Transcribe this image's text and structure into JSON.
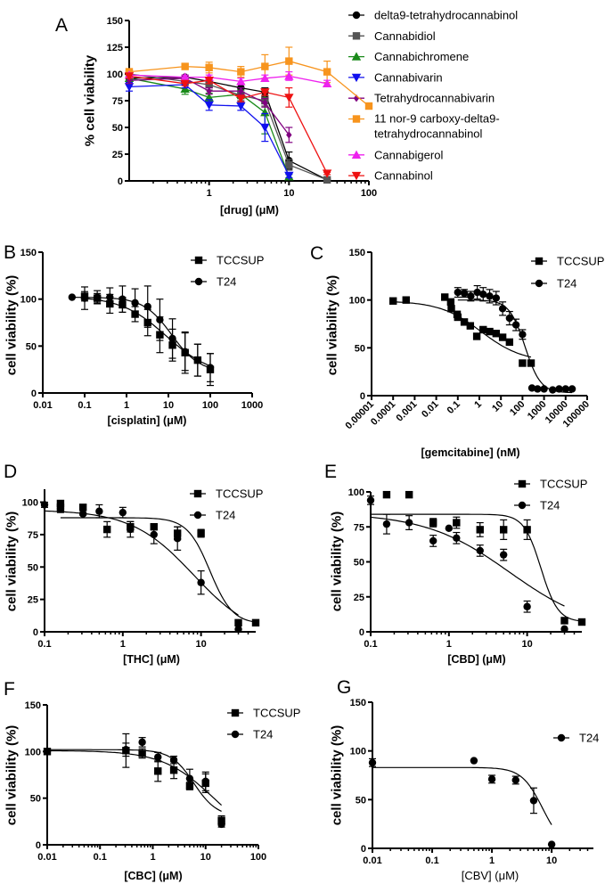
{
  "chart_data": [
    {
      "panel": "A",
      "type": "line",
      "xscale": "log",
      "xlim": [
        0.1,
        100
      ],
      "ylim": [
        0,
        150
      ],
      "xticks": [
        1,
        10,
        100
      ],
      "yticks": [
        0,
        25,
        50,
        75,
        100,
        125,
        150
      ],
      "xlabel": "[drug] (μM)",
      "ylabel": "% cell viability",
      "grid": false,
      "legend": "right",
      "series": [
        {
          "name": "delta9-tetrahydrocannabinol",
          "color": "#000000",
          "marker": "circle",
          "x": [
            0.1,
            0.5,
            1,
            2.5,
            5,
            10,
            30
          ],
          "y": [
            96,
            97,
            93,
            87,
            83,
            19,
            1
          ],
          "err": [
            3,
            2,
            4,
            4,
            4,
            8,
            1
          ]
        },
        {
          "name": "Cannabidiol",
          "color": "#555555",
          "marker": "square",
          "x": [
            0.1,
            0.5,
            1,
            2.5,
            5,
            10,
            30
          ],
          "y": [
            100,
            93,
            90,
            80,
            75,
            15,
            1
          ],
          "err": [
            3,
            3,
            5,
            5,
            5,
            5,
            1
          ]
        },
        {
          "name": "Cannabichromene",
          "color": "#1a8a1a",
          "marker": "triangle-up",
          "x": [
            0.1,
            0.5,
            1,
            2.5,
            5,
            10
          ],
          "y": [
            96,
            86,
            78,
            81,
            64,
            4
          ],
          "err": [
            3,
            5,
            4,
            4,
            20,
            2
          ]
        },
        {
          "name": "Cannabivarin",
          "color": "#1010ee",
          "marker": "triangle-down",
          "x": [
            0.1,
            0.5,
            1,
            2.5,
            5,
            10
          ],
          "y": [
            88,
            90,
            71,
            70,
            50,
            5
          ],
          "err": [
            4,
            3,
            5,
            4,
            13,
            2
          ]
        },
        {
          "name": "Tetrahydrocannabivarin",
          "color": "#800080",
          "marker": "diamond",
          "x": [
            0.1,
            0.5,
            1,
            2.5,
            5,
            10
          ],
          "y": [
            94,
            96,
            84,
            84,
            73,
            43
          ],
          "err": [
            3,
            2,
            3,
            3,
            4,
            7
          ]
        },
        {
          "name": "11 nor-9 carboxy-delta9-tetrahydrocannabinol",
          "legend_lines": [
            "11 nor-9 carboxy-delta9-",
            "tetrahydrocannabinol"
          ],
          "color": "#f7941d",
          "marker": "square",
          "x": [
            0.1,
            0.5,
            1,
            2.5,
            5,
            10,
            30,
            100
          ],
          "y": [
            102,
            107,
            106,
            102,
            107,
            112,
            102,
            70
          ],
          "err": [
            3,
            2,
            5,
            5,
            11,
            13,
            10,
            1
          ]
        },
        {
          "name": "Cannabigerol",
          "color": "#ee22ee",
          "marker": "triangle-up",
          "x": [
            0.1,
            0.5,
            1,
            2.5,
            5,
            10,
            30
          ],
          "y": [
            99,
            97,
            97,
            93,
            96,
            98,
            91
          ],
          "err": [
            2,
            2,
            2,
            3,
            3,
            4,
            3
          ]
        },
        {
          "name": "Cannabinol",
          "color": "#ee1111",
          "marker": "triangle-down",
          "x": [
            0.1,
            0.5,
            1,
            2.5,
            5,
            10,
            30
          ],
          "y": [
            98,
            91,
            94,
            77,
            83,
            78,
            7
          ],
          "err": [
            2,
            2,
            3,
            3,
            3,
            9,
            1
          ]
        }
      ]
    },
    {
      "panel": "B",
      "type": "scatter",
      "xscale": "log",
      "xlim": [
        0.01,
        1000
      ],
      "ylim": [
        0,
        150
      ],
      "xticks": [
        0.01,
        0.1,
        1,
        10,
        100,
        1000
      ],
      "xticklabels": [
        "0.01",
        "0.1",
        "1",
        "10",
        "100",
        "1000"
      ],
      "yticks": [
        0,
        50,
        100,
        150
      ],
      "xlabel": "[cisplatin] (μM)",
      "ylabel": "cell viability (%)",
      "grid": false,
      "legend": "top-right",
      "series": [
        {
          "name": "TCCSUP",
          "marker": "square",
          "x": [
            0.1,
            0.2,
            0.4,
            0.8,
            1.6,
            3.2,
            6.25,
            12.5,
            25,
            50,
            100
          ],
          "y": [
            103,
            101,
            95,
            94,
            84,
            75,
            62,
            51,
            43,
            35,
            25
          ],
          "err": [
            5,
            5,
            10,
            8,
            8,
            14,
            19,
            17,
            22,
            17,
            17
          ],
          "fit": {
            "top": 103,
            "bottom": 18,
            "ec50": 9,
            "hill": 0.8
          }
        },
        {
          "name": "T24",
          "marker": "circle",
          "x": [
            0.05,
            0.1,
            0.2,
            0.4,
            0.8,
            1.6,
            3.2,
            6.25,
            12.5,
            25,
            50,
            100
          ],
          "y": [
            102,
            101,
            102,
            102,
            100,
            96,
            92,
            78,
            58,
            44,
            35,
            27
          ],
          "err": [
            0,
            12,
            7,
            10,
            14,
            15,
            22,
            22,
            21,
            20,
            17,
            15
          ],
          "fit": {
            "top": 102,
            "bottom": 22,
            "ec50": 12,
            "hill": 1.3
          }
        }
      ]
    },
    {
      "panel": "C",
      "type": "scatter",
      "xscale": "log",
      "xlim": [
        1e-05,
        100000
      ],
      "ylim": [
        0,
        150
      ],
      "xticks": [
        1e-05,
        0.0001,
        0.001,
        0.01,
        0.1,
        1,
        10,
        100,
        1000,
        10000,
        100000
      ],
      "xticklabels": [
        "0.00001",
        "0.0001",
        "0.001",
        "0.01",
        "0.1",
        "1",
        "10",
        "100",
        "1000",
        "10000",
        "100000"
      ],
      "yticks": [
        0,
        50,
        100,
        150
      ],
      "xlabel": "[gemcitabine] (nM)",
      "ylabel": "cell viability (%)",
      "grid": false,
      "legend": "top-right",
      "series": [
        {
          "name": "TCCSUP",
          "marker": "square",
          "x": [
            0.0001,
            0.0004,
            0.025,
            0.047,
            0.05,
            0.093,
            0.1,
            0.2,
            0.38,
            0.76,
            1.5,
            3,
            6,
            12,
            25,
            100,
            250
          ],
          "y": [
            99,
            100,
            103,
            98,
            91,
            85,
            82,
            77,
            73,
            62,
            69,
            67,
            65,
            61,
            56,
            34,
            34
          ],
          "err": [],
          "fit": {
            "top": 99,
            "bottom": 35,
            "ec50": 1.2,
            "hill": 0.45,
            "range": [
              0.0001,
              250
            ]
          }
        },
        {
          "name": "T24",
          "marker": "circle",
          "x": [
            0.1,
            0.2,
            0.4,
            0.8,
            1.5,
            3,
            6,
            12,
            25,
            50,
            100,
            275,
            500,
            1000,
            2500,
            5000,
            10000,
            20000
          ],
          "y": [
            108,
            107,
            104,
            108,
            106,
            104,
            102,
            91,
            81,
            74,
            64,
            8,
            7,
            7,
            6,
            7,
            7,
            7
          ],
          "err": [
            5,
            4,
            5,
            7,
            7,
            7,
            7,
            7,
            7,
            6,
            5,
            0,
            0,
            0,
            0,
            0,
            0,
            0
          ],
          "fit": {
            "top": 100,
            "bottom": 3,
            "ec50": 130,
            "hill": 1.2,
            "range": [
              0.1,
              20000
            ]
          }
        }
      ]
    },
    {
      "panel": "D",
      "type": "scatter",
      "xscale": "log",
      "xlim": [
        0.1,
        50
      ],
      "ylim": [
        0,
        110
      ],
      "xticks": [
        0.1,
        1,
        10
      ],
      "xticklabels": [
        "0.1",
        "1",
        "10"
      ],
      "yticks": [
        0,
        25,
        50,
        75,
        100
      ],
      "xlabel": "[THC] (μM)",
      "ylabel": "cell viability (%)",
      "grid": false,
      "legend": "top-right",
      "series": [
        {
          "name": "TCCSUP",
          "marker": "square",
          "x": [
            0.16,
            0.16,
            0.31,
            0.63,
            1.25,
            2.5,
            5,
            10,
            30,
            50
          ],
          "y": [
            99,
            96,
            96,
            79,
            81,
            81,
            76,
            76,
            7,
            7
          ],
          "err": [
            2,
            3,
            2,
            6,
            4,
            2,
            5,
            3,
            0,
            0
          ],
          "fit": {
            "top": 88,
            "bottom": 6,
            "ec50": 13,
            "hill": 3,
            "range": [
              0.16,
              50
            ]
          }
        },
        {
          "name": "T24",
          "marker": "circle",
          "x": [
            0.1,
            0.16,
            0.31,
            0.5,
            1,
            1.25,
            2.5,
            5,
            10,
            30
          ],
          "y": [
            98,
            95,
            91,
            93,
            92,
            79,
            75,
            72,
            38,
            2
          ],
          "err": [
            2,
            3,
            1,
            5,
            4,
            6,
            7,
            9,
            9,
            0
          ],
          "fit": {
            "top": 94,
            "bottom": -6,
            "ec50": 8,
            "hill": 1.1,
            "range": [
              0.1,
              30
            ]
          }
        }
      ]
    },
    {
      "panel": "E",
      "type": "scatter",
      "xscale": "log",
      "xlim": [
        0.1,
        50
      ],
      "ylim": [
        0,
        100
      ],
      "xticks": [
        0.1,
        1,
        10
      ],
      "xticklabels": [
        "0.1",
        "1",
        "10"
      ],
      "yticks": [
        0,
        25,
        50,
        75,
        100
      ],
      "xlabel": "[CBD] (μM)",
      "ylabel": "cell viability (%)",
      "grid": false,
      "legend": "top-right",
      "series": [
        {
          "name": "TCCSUP",
          "marker": "square",
          "x": [
            0.16,
            0.31,
            0.63,
            1.25,
            2.5,
            5,
            10,
            30,
            50
          ],
          "y": [
            98,
            98,
            78,
            78,
            73,
            73,
            73,
            8,
            7
          ],
          "err": [
            0,
            2,
            3,
            4,
            5,
            7,
            7,
            0,
            0
          ],
          "fit": {
            "top": 84,
            "bottom": 7,
            "ec50": 15,
            "hill": 4,
            "range": [
              0.1,
              50
            ]
          }
        },
        {
          "name": "T24",
          "marker": "circle",
          "x": [
            0.1,
            0.16,
            0.31,
            0.63,
            1,
            1.25,
            2.5,
            5,
            10,
            30
          ],
          "y": [
            94,
            77,
            78,
            65,
            74,
            67,
            58,
            55,
            18,
            2
          ],
          "err": [
            3,
            7,
            5,
            4,
            0,
            4,
            4,
            4,
            4,
            0
          ],
          "fit": {
            "top": 85,
            "bottom": 0,
            "ec50": 6,
            "hill": 0.8,
            "range": [
              0.1,
              30
            ]
          }
        }
      ]
    },
    {
      "panel": "F",
      "type": "scatter",
      "xscale": "log",
      "xlim": [
        0.01,
        100
      ],
      "ylim": [
        0,
        150
      ],
      "xticks": [
        0.01,
        0.1,
        1,
        10,
        100
      ],
      "xticklabels": [
        "0.01",
        "0.1",
        "1",
        "10",
        "100"
      ],
      "yticks": [
        0,
        50,
        100,
        150
      ],
      "xlabel": "[CBC] (μM)",
      "ylabel": "cell viability (%)",
      "grid": false,
      "legend": "top-right",
      "series": [
        {
          "name": "TCCSUP",
          "marker": "square",
          "x": [
            0.01,
            0.31,
            0.63,
            1.25,
            2.5,
            5,
            10,
            20
          ],
          "y": [
            100,
            101,
            98,
            79,
            80,
            63,
            66,
            26
          ],
          "err": [
            0,
            18,
            5,
            11,
            9,
            4,
            10,
            5
          ],
          "fit": {
            "top": 101,
            "bottom": 0,
            "ec50": 14,
            "hill": 0.9,
            "range": [
              0.01,
              20
            ]
          }
        },
        {
          "name": "T24",
          "marker": "circle",
          "x": [
            0.01,
            0.31,
            0.63,
            1.25,
            2.5,
            5,
            10,
            20
          ],
          "y": [
            100,
            102,
            110,
            94,
            91,
            71,
            68,
            22
          ],
          "err": [
            0,
            7,
            5,
            5,
            4,
            10,
            10,
            3
          ],
          "fit": {
            "top": 102,
            "bottom": 30,
            "ec50": 6,
            "hill": 2,
            "range": [
              0.01,
              20
            ]
          }
        }
      ]
    },
    {
      "panel": "G",
      "type": "scatter",
      "xscale": "log",
      "xlim": [
        0.01,
        50
      ],
      "ylim": [
        0,
        150
      ],
      "xticks": [
        0.01,
        0.1,
        1,
        10
      ],
      "xticklabels": [
        "0.01",
        "0.1",
        "1",
        "10"
      ],
      "yticks": [
        0,
        50,
        100,
        150
      ],
      "xlabel": "[CBV] (μM)",
      "ylabel": "cell viability (%)",
      "grid": false,
      "legend": "top-right",
      "series": [
        {
          "name": "T24",
          "marker": "circle",
          "x": [
            0.01,
            0.5,
            1,
            2.5,
            5,
            10
          ],
          "y": [
            88,
            90,
            71,
            70,
            49,
            4
          ],
          "err": [
            4,
            0,
            4,
            4,
            13,
            0
          ],
          "fit": {
            "top": 83,
            "bottom": 0,
            "ec50": 7,
            "hill": 2.5,
            "range": [
              0.01,
              10
            ]
          }
        }
      ]
    }
  ]
}
